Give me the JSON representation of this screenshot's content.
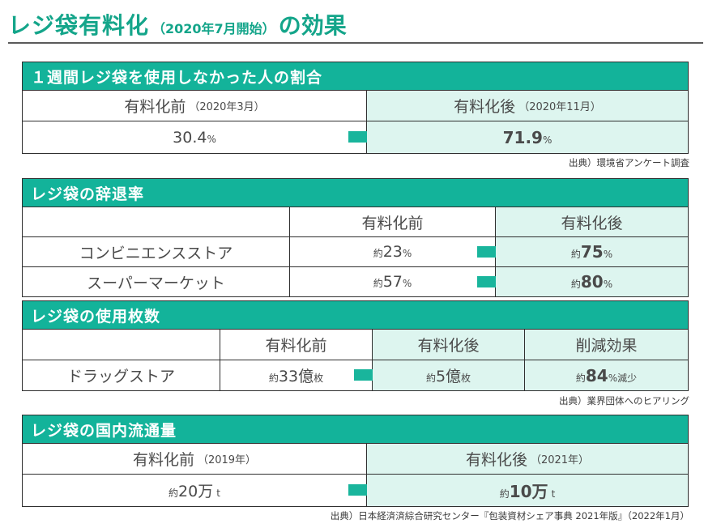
{
  "title": {
    "main": "レジ袋有料化",
    "sub": "（2020年7月開始）",
    "end": "の効果"
  },
  "sections": {
    "s1": {
      "heading": "１週間レジ袋を使用しなかった人の割合",
      "before_label": "有料化前",
      "before_period": "（2020年3月）",
      "after_label": "有料化後",
      "after_period": "（2020年11月）",
      "before_value": "30.4",
      "before_unit": "%",
      "after_value": "71.9",
      "after_unit": "%",
      "source": "出典）環境省アンケート調査"
    },
    "s2": {
      "heading": "レジ袋の辞退率",
      "before_label": "有料化前",
      "after_label": "有料化後",
      "rows": [
        {
          "name": "コンビニエンスストア",
          "prefix": "約",
          "before": "23",
          "after": "75",
          "unit": "%"
        },
        {
          "name": "スーパーマーケット",
          "prefix": "約",
          "before": "57",
          "after": "80",
          "unit": "%"
        }
      ]
    },
    "s3": {
      "heading": "レジ袋の使用枚数",
      "before_label": "有料化前",
      "after_label": "有料化後",
      "effect_label": "削減効果",
      "row_name": "ドラッグストア",
      "prefix": "約",
      "before_value": "33億",
      "before_unit": "枚",
      "after_value": "5億",
      "after_unit": "枚",
      "effect_value": "84",
      "effect_unit": "%減少",
      "source": "出典）業界団体へのヒアリング"
    },
    "s4": {
      "heading": "レジ袋の国内流通量",
      "before_label": "有料化前",
      "before_period": "（2019年）",
      "after_label": "有料化後",
      "after_period": "（2021年）",
      "prefix": "約",
      "before_value": "20万",
      "after_value": "10万",
      "unit": "t",
      "source": "出典）日本経済済綜合研究センター『包装資材シェア事典 2021年版』（2022年1月）"
    }
  },
  "colors": {
    "accent": "#13b39a",
    "mint": "#ddf5ef",
    "arrow": "#19b59c"
  }
}
